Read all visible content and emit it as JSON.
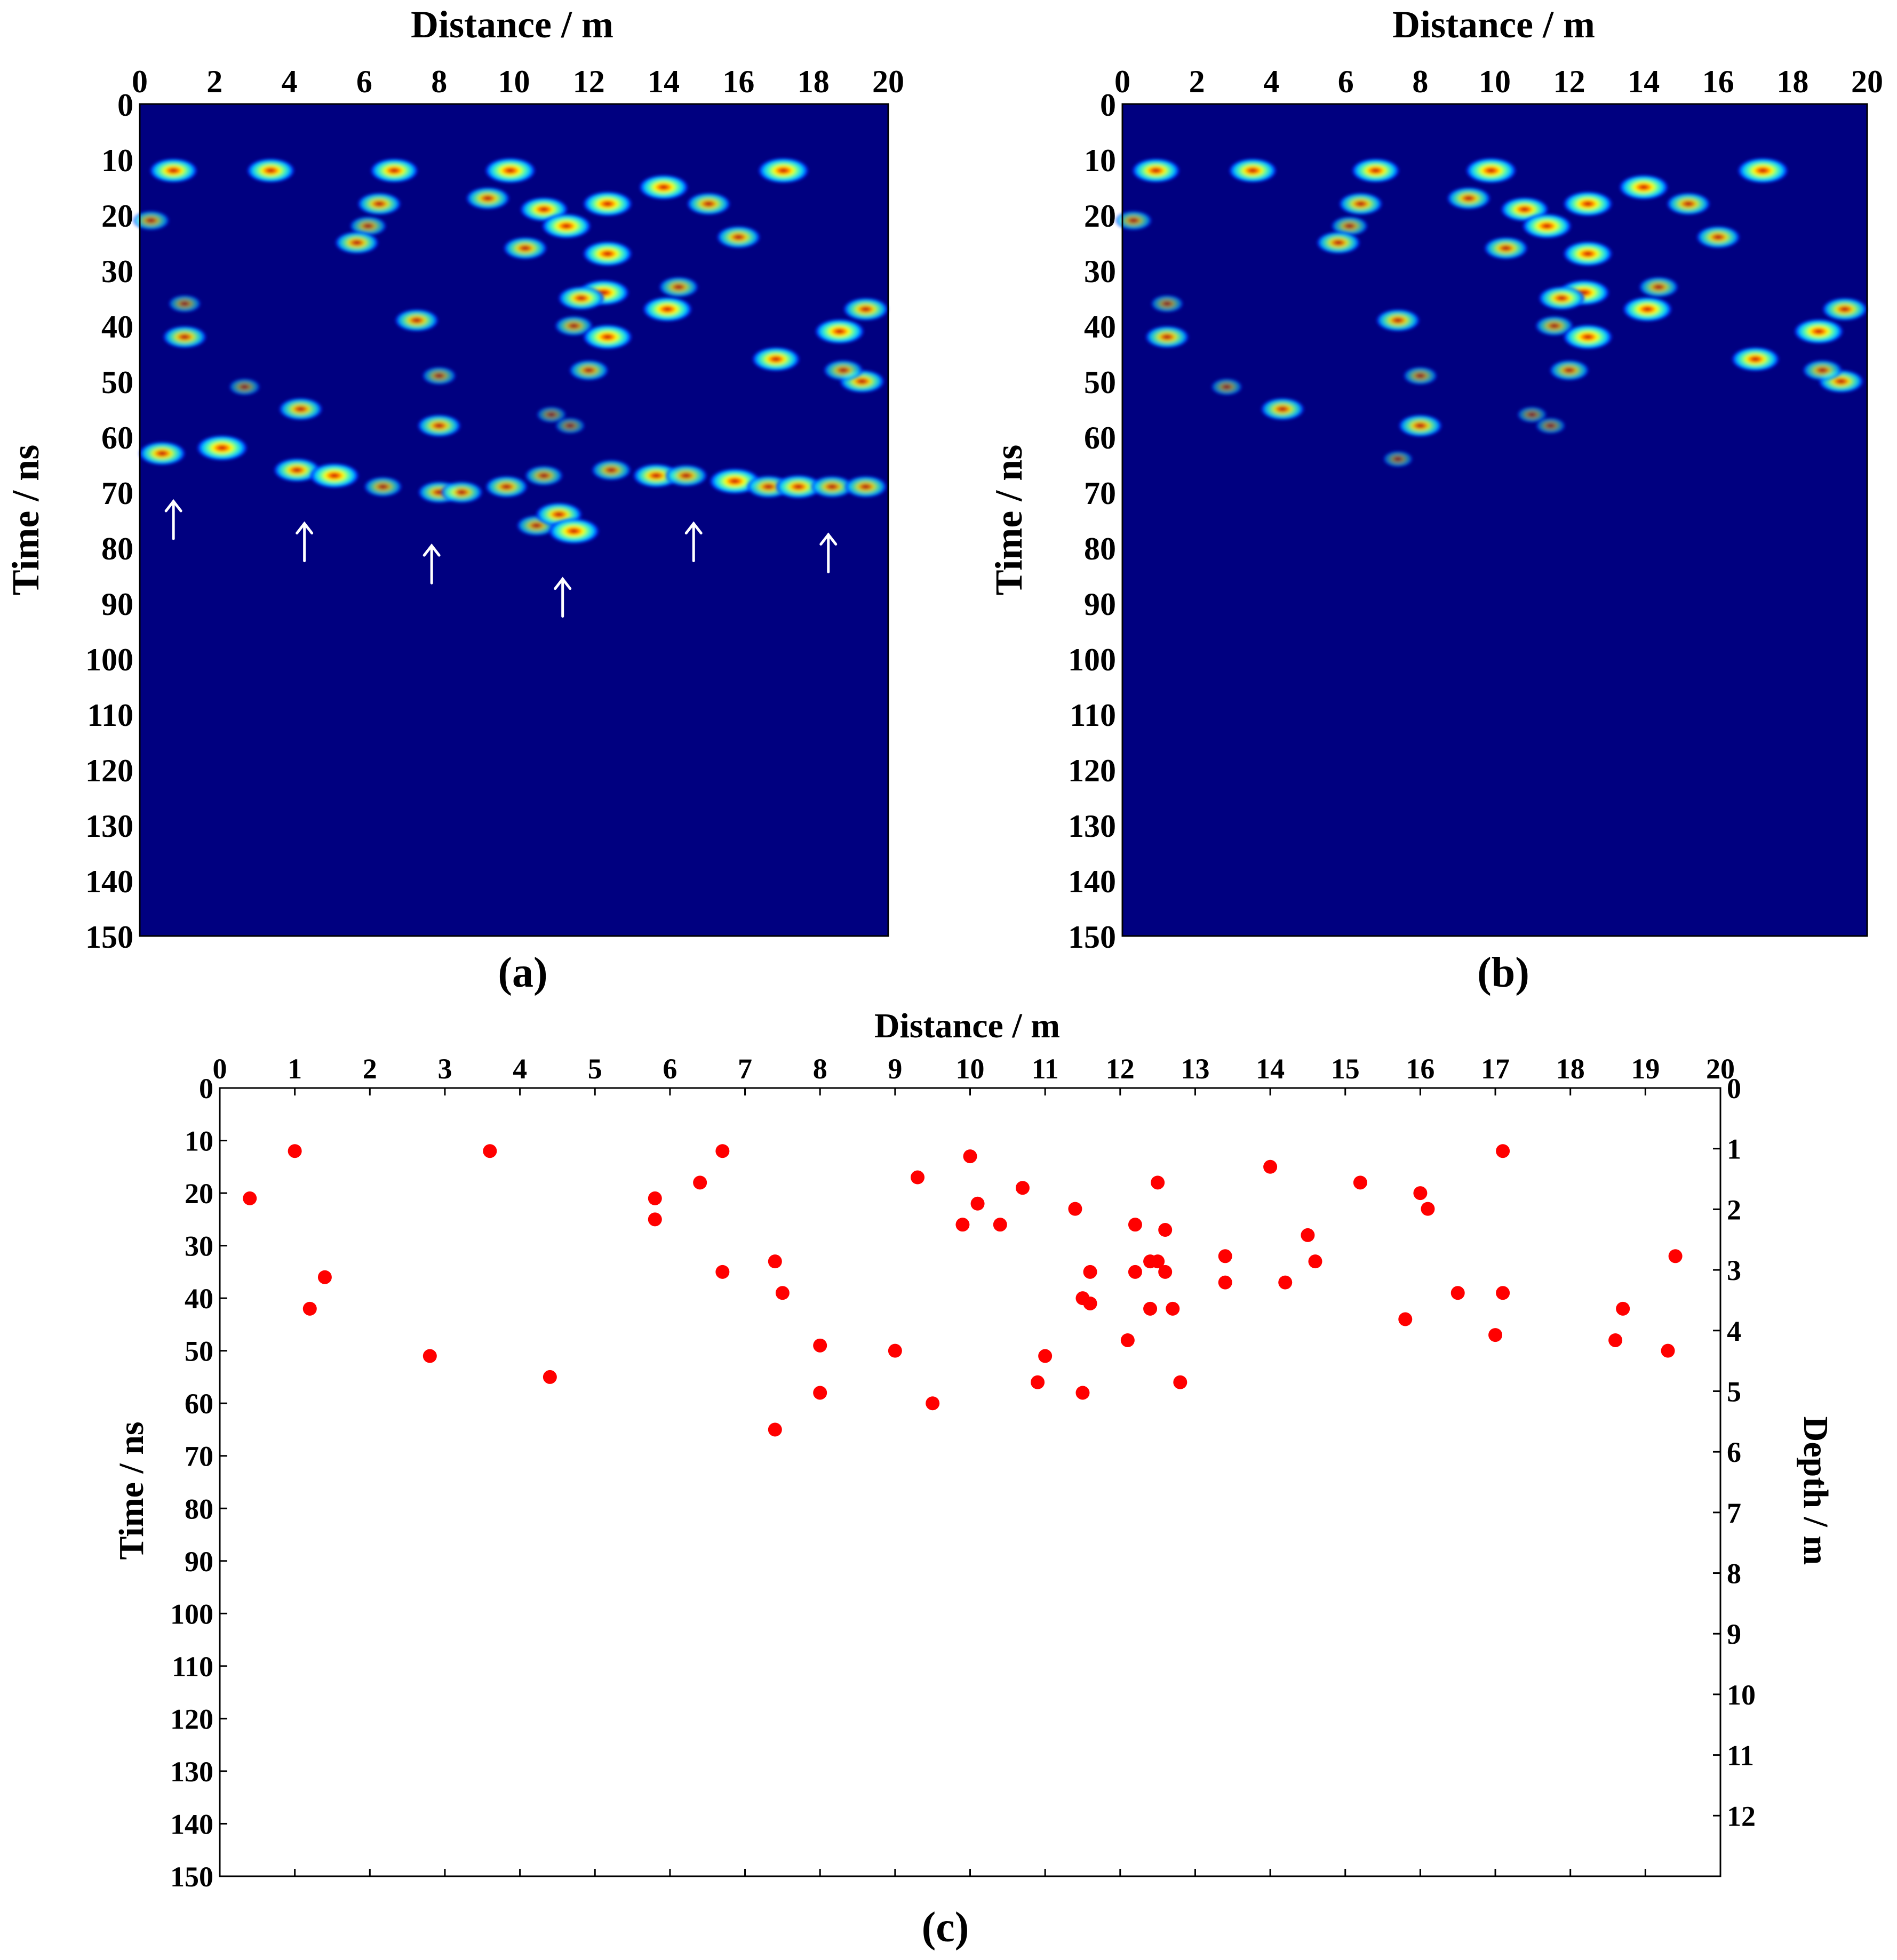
{
  "colors": {
    "background": "#000080",
    "frame": "#000000",
    "scatter_marker": "#ff0000",
    "arrow": "#ffffff",
    "colormap": [
      "#000080",
      "#0030ff",
      "#00c8ff",
      "#60ffa0",
      "#ffff00",
      "#ff6000",
      "#a00000"
    ]
  },
  "chart_data": [
    {
      "id": "a",
      "type": "heatmap",
      "panel_label": "(a)",
      "xlabel": "Distance / m",
      "ylabel": "Time / ns",
      "xlim": [
        0,
        20
      ],
      "ylim": [
        150,
        0
      ],
      "xticks": [
        "0",
        "2",
        "4",
        "6",
        "8",
        "10",
        "12",
        "14",
        "16",
        "18",
        "20"
      ],
      "yticks": [
        "0",
        "10",
        "20",
        "30",
        "40",
        "50",
        "60",
        "70",
        "80",
        "90",
        "100",
        "110",
        "120",
        "130",
        "140",
        "150"
      ],
      "description": "Migrated GPR image showing isolated diffraction hotspots and a continuous reflector near 63-78 ns",
      "blobs": [
        {
          "x": 0.9,
          "t": 12,
          "i": 0.9
        },
        {
          "x": 3.5,
          "t": 12,
          "i": 0.9
        },
        {
          "x": 6.8,
          "t": 12,
          "i": 0.9
        },
        {
          "x": 9.9,
          "t": 12,
          "i": 1.0
        },
        {
          "x": 9.3,
          "t": 17,
          "i": 0.75
        },
        {
          "x": 10.8,
          "t": 19,
          "i": 0.9
        },
        {
          "x": 14.0,
          "t": 15,
          "i": 0.95
        },
        {
          "x": 17.2,
          "t": 12,
          "i": 1.0
        },
        {
          "x": 6.4,
          "t": 18,
          "i": 0.75
        },
        {
          "x": 6.1,
          "t": 22,
          "i": 0.5
        },
        {
          "x": 5.8,
          "t": 25,
          "i": 0.75
        },
        {
          "x": 0.3,
          "t": 21,
          "i": 0.5
        },
        {
          "x": 10.3,
          "t": 26,
          "i": 0.75
        },
        {
          "x": 11.4,
          "t": 22,
          "i": 0.95
        },
        {
          "x": 12.5,
          "t": 18,
          "i": 0.95
        },
        {
          "x": 12.5,
          "t": 27,
          "i": 0.95
        },
        {
          "x": 12.4,
          "t": 34,
          "i": 1.0
        },
        {
          "x": 11.8,
          "t": 35,
          "i": 0.85
        },
        {
          "x": 14.1,
          "t": 37,
          "i": 0.95
        },
        {
          "x": 14.4,
          "t": 33,
          "i": 0.6
        },
        {
          "x": 15.2,
          "t": 18,
          "i": 0.75
        },
        {
          "x": 16.0,
          "t": 24,
          "i": 0.75
        },
        {
          "x": 11.6,
          "t": 40,
          "i": 0.55
        },
        {
          "x": 12.5,
          "t": 42,
          "i": 0.95
        },
        {
          "x": 1.2,
          "t": 36,
          "i": 0.35
        },
        {
          "x": 1.2,
          "t": 42,
          "i": 0.75
        },
        {
          "x": 7.4,
          "t": 39,
          "i": 0.75
        },
        {
          "x": 17.0,
          "t": 46,
          "i": 0.9
        },
        {
          "x": 18.7,
          "t": 41,
          "i": 0.95
        },
        {
          "x": 19.4,
          "t": 37,
          "i": 0.8
        },
        {
          "x": 19.3,
          "t": 50,
          "i": 0.8
        },
        {
          "x": 18.8,
          "t": 48,
          "i": 0.6
        },
        {
          "x": 12.0,
          "t": 48,
          "i": 0.6
        },
        {
          "x": 8.0,
          "t": 49,
          "i": 0.4
        },
        {
          "x": 2.8,
          "t": 51,
          "i": 0.3
        },
        {
          "x": 4.3,
          "t": 55,
          "i": 0.75
        },
        {
          "x": 8.0,
          "t": 58,
          "i": 0.75
        },
        {
          "x": 11.0,
          "t": 56,
          "i": 0.25
        },
        {
          "x": 11.5,
          "t": 58,
          "i": 0.25
        },
        {
          "x": 0.6,
          "t": 63,
          "i": 0.85
        },
        {
          "x": 2.2,
          "t": 62,
          "i": 1.0
        },
        {
          "x": 4.2,
          "t": 66,
          "i": 0.85
        },
        {
          "x": 5.2,
          "t": 67,
          "i": 0.95
        },
        {
          "x": 6.5,
          "t": 69,
          "i": 0.55
        },
        {
          "x": 8.0,
          "t": 70,
          "i": 0.7
        },
        {
          "x": 8.6,
          "t": 70,
          "i": 0.7
        },
        {
          "x": 9.8,
          "t": 69,
          "i": 0.7
        },
        {
          "x": 10.8,
          "t": 67,
          "i": 0.55
        },
        {
          "x": 10.6,
          "t": 76,
          "i": 0.6
        },
        {
          "x": 11.2,
          "t": 74,
          "i": 0.85
        },
        {
          "x": 11.6,
          "t": 77,
          "i": 1.0
        },
        {
          "x": 12.6,
          "t": 66,
          "i": 0.6
        },
        {
          "x": 13.8,
          "t": 67,
          "i": 0.85
        },
        {
          "x": 14.6,
          "t": 67,
          "i": 0.7
        },
        {
          "x": 15.9,
          "t": 68,
          "i": 1.0
        },
        {
          "x": 16.8,
          "t": 69,
          "i": 0.75
        },
        {
          "x": 17.6,
          "t": 69,
          "i": 0.85
        },
        {
          "x": 18.5,
          "t": 69,
          "i": 0.7
        },
        {
          "x": 19.4,
          "t": 69,
          "i": 0.7
        }
      ],
      "arrows": [
        {
          "x": 0.9,
          "t": 75
        },
        {
          "x": 4.4,
          "t": 79
        },
        {
          "x": 7.8,
          "t": 83
        },
        {
          "x": 11.3,
          "t": 89
        },
        {
          "x": 14.8,
          "t": 79
        },
        {
          "x": 18.4,
          "t": 81
        }
      ]
    },
    {
      "id": "b",
      "type": "heatmap",
      "panel_label": "(b)",
      "xlabel": "Distance / m",
      "ylabel": "Time / ns",
      "xlim": [
        0,
        20
      ],
      "ylim": [
        150,
        0
      ],
      "xticks": [
        "0",
        "2",
        "4",
        "6",
        "8",
        "10",
        "12",
        "14",
        "16",
        "18",
        "20"
      ],
      "yticks": [
        "0",
        "10",
        "20",
        "30",
        "40",
        "50",
        "60",
        "70",
        "80",
        "90",
        "100",
        "110",
        "120",
        "130",
        "140",
        "150"
      ],
      "description": "Same image with the continuous reflector removed; only diffraction hotspots remain",
      "blobs": [
        {
          "x": 0.9,
          "t": 12,
          "i": 0.9
        },
        {
          "x": 3.5,
          "t": 12,
          "i": 0.9
        },
        {
          "x": 6.8,
          "t": 12,
          "i": 0.9
        },
        {
          "x": 9.9,
          "t": 12,
          "i": 1.0
        },
        {
          "x": 9.3,
          "t": 17,
          "i": 0.75
        },
        {
          "x": 10.8,
          "t": 19,
          "i": 0.9
        },
        {
          "x": 14.0,
          "t": 15,
          "i": 0.95
        },
        {
          "x": 17.2,
          "t": 12,
          "i": 1.0
        },
        {
          "x": 6.4,
          "t": 18,
          "i": 0.75
        },
        {
          "x": 6.1,
          "t": 22,
          "i": 0.5
        },
        {
          "x": 5.8,
          "t": 25,
          "i": 0.75
        },
        {
          "x": 0.3,
          "t": 21,
          "i": 0.5
        },
        {
          "x": 10.3,
          "t": 26,
          "i": 0.75
        },
        {
          "x": 11.4,
          "t": 22,
          "i": 0.95
        },
        {
          "x": 12.5,
          "t": 18,
          "i": 0.95
        },
        {
          "x": 12.5,
          "t": 27,
          "i": 0.95
        },
        {
          "x": 12.4,
          "t": 34,
          "i": 1.0
        },
        {
          "x": 11.8,
          "t": 35,
          "i": 0.85
        },
        {
          "x": 14.1,
          "t": 37,
          "i": 0.95
        },
        {
          "x": 14.4,
          "t": 33,
          "i": 0.6
        },
        {
          "x": 15.2,
          "t": 18,
          "i": 0.75
        },
        {
          "x": 16.0,
          "t": 24,
          "i": 0.75
        },
        {
          "x": 11.6,
          "t": 40,
          "i": 0.55
        },
        {
          "x": 12.5,
          "t": 42,
          "i": 0.95
        },
        {
          "x": 1.2,
          "t": 36,
          "i": 0.35
        },
        {
          "x": 1.2,
          "t": 42,
          "i": 0.75
        },
        {
          "x": 7.4,
          "t": 39,
          "i": 0.75
        },
        {
          "x": 17.0,
          "t": 46,
          "i": 0.9
        },
        {
          "x": 18.7,
          "t": 41,
          "i": 0.95
        },
        {
          "x": 19.4,
          "t": 37,
          "i": 0.8
        },
        {
          "x": 19.3,
          "t": 50,
          "i": 0.8
        },
        {
          "x": 18.8,
          "t": 48,
          "i": 0.6
        },
        {
          "x": 12.0,
          "t": 48,
          "i": 0.6
        },
        {
          "x": 8.0,
          "t": 49,
          "i": 0.4
        },
        {
          "x": 2.8,
          "t": 51,
          "i": 0.3
        },
        {
          "x": 4.3,
          "t": 55,
          "i": 0.75
        },
        {
          "x": 8.0,
          "t": 58,
          "i": 0.75
        },
        {
          "x": 11.0,
          "t": 56,
          "i": 0.25
        },
        {
          "x": 11.5,
          "t": 58,
          "i": 0.25
        },
        {
          "x": 7.4,
          "t": 64,
          "i": 0.25
        }
      ],
      "arrows": []
    },
    {
      "id": "c",
      "type": "scatter",
      "panel_label": "(c)",
      "xlabel": "Distance / m",
      "ylabel": "Time / ns",
      "ylabel_right": "Depth / m",
      "xlim": [
        0,
        20
      ],
      "ylim": [
        150,
        0
      ],
      "ylim_right": [
        13,
        0
      ],
      "xticks": [
        "0",
        "1",
        "2",
        "3",
        "4",
        "5",
        "6",
        "7",
        "8",
        "9",
        "10",
        "11",
        "12",
        "13",
        "14",
        "15",
        "16",
        "17",
        "18",
        "19",
        "20"
      ],
      "yticks": [
        "0",
        "10",
        "20",
        "30",
        "40",
        "50",
        "60",
        "70",
        "80",
        "90",
        "100",
        "110",
        "120",
        "130",
        "140",
        "150"
      ],
      "yticks_right": [
        "0",
        "1",
        "2",
        "3",
        "4",
        "5",
        "6",
        "7",
        "8",
        "9",
        "10",
        "11",
        "12"
      ],
      "points": [
        {
          "x": 0.4,
          "t": 21
        },
        {
          "x": 1.0,
          "t": 12
        },
        {
          "x": 1.2,
          "t": 42
        },
        {
          "x": 1.4,
          "t": 36
        },
        {
          "x": 2.8,
          "t": 51
        },
        {
          "x": 3.6,
          "t": 12
        },
        {
          "x": 4.4,
          "t": 55
        },
        {
          "x": 5.8,
          "t": 21
        },
        {
          "x": 5.8,
          "t": 25
        },
        {
          "x": 6.4,
          "t": 18
        },
        {
          "x": 6.7,
          "t": 12
        },
        {
          "x": 6.7,
          "t": 35
        },
        {
          "x": 7.4,
          "t": 33
        },
        {
          "x": 7.5,
          "t": 39
        },
        {
          "x": 7.4,
          "t": 65
        },
        {
          "x": 8.0,
          "t": 49
        },
        {
          "x": 8.0,
          "t": 58
        },
        {
          "x": 9.0,
          "t": 50
        },
        {
          "x": 9.3,
          "t": 17
        },
        {
          "x": 9.5,
          "t": 60
        },
        {
          "x": 9.9,
          "t": 26
        },
        {
          "x": 10.0,
          "t": 13
        },
        {
          "x": 10.1,
          "t": 22
        },
        {
          "x": 10.4,
          "t": 26
        },
        {
          "x": 10.7,
          "t": 19
        },
        {
          "x": 10.9,
          "t": 56
        },
        {
          "x": 11.0,
          "t": 51
        },
        {
          "x": 11.4,
          "t": 23
        },
        {
          "x": 11.5,
          "t": 40
        },
        {
          "x": 11.5,
          "t": 58
        },
        {
          "x": 11.6,
          "t": 35
        },
        {
          "x": 11.6,
          "t": 41
        },
        {
          "x": 12.1,
          "t": 48
        },
        {
          "x": 12.2,
          "t": 26
        },
        {
          "x": 12.2,
          "t": 35
        },
        {
          "x": 12.4,
          "t": 33
        },
        {
          "x": 12.4,
          "t": 42
        },
        {
          "x": 12.5,
          "t": 18
        },
        {
          "x": 12.5,
          "t": 33
        },
        {
          "x": 12.6,
          "t": 27
        },
        {
          "x": 12.6,
          "t": 35
        },
        {
          "x": 12.7,
          "t": 42
        },
        {
          "x": 12.8,
          "t": 56
        },
        {
          "x": 13.4,
          "t": 32
        },
        {
          "x": 13.4,
          "t": 37
        },
        {
          "x": 14.0,
          "t": 15
        },
        {
          "x": 14.2,
          "t": 37
        },
        {
          "x": 14.5,
          "t": 28
        },
        {
          "x": 14.6,
          "t": 33
        },
        {
          "x": 15.2,
          "t": 18
        },
        {
          "x": 15.8,
          "t": 44
        },
        {
          "x": 16.0,
          "t": 20
        },
        {
          "x": 16.1,
          "t": 23
        },
        {
          "x": 16.5,
          "t": 39
        },
        {
          "x": 17.0,
          "t": 47
        },
        {
          "x": 17.1,
          "t": 12
        },
        {
          "x": 17.1,
          "t": 39
        },
        {
          "x": 18.6,
          "t": 48
        },
        {
          "x": 18.7,
          "t": 42
        },
        {
          "x": 19.3,
          "t": 50
        },
        {
          "x": 19.4,
          "t": 32
        }
      ]
    }
  ]
}
